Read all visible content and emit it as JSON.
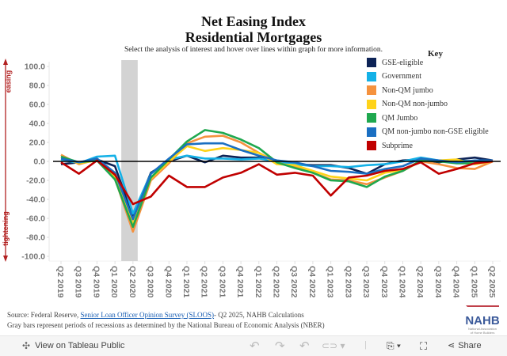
{
  "header": {
    "title_line1": "Net Easing Index",
    "title_line2": "Residential Mortgages",
    "subtitle": "Select the analysis of interest and hover over lines within graph for more information."
  },
  "legend": {
    "title": "Key"
  },
  "axis_annotations": {
    "top": "easing",
    "bottom": "tightening",
    "arrow_color": "#b22222"
  },
  "chart_data": {
    "type": "line",
    "title": "Net Easing Index Residential Mortgages",
    "xlabel": "",
    "ylabel": "",
    "ylim": [
      -100,
      100
    ],
    "yticks": [
      100,
      80,
      60,
      40,
      20,
      0,
      -20,
      -40,
      -60,
      -80,
      -100
    ],
    "ytick_labels": [
      "100.0",
      "80.0",
      "60.0",
      "40.0",
      "20.0",
      "0.0",
      "-20.0",
      "-40.0",
      "-60.0",
      "-80.0",
      "-100.0"
    ],
    "x": [
      "Q2 2019",
      "Q3 2019",
      "Q4 2019",
      "Q1 2020",
      "Q2 2020",
      "Q3 2020",
      "Q4 2020",
      "Q1 2021",
      "Q2 2021",
      "Q3 2021",
      "Q4 2021",
      "Q1 2022",
      "Q2 2022",
      "Q3 2022",
      "Q4 2022",
      "Q1 2023",
      "Q2 2023",
      "Q3 2023",
      "Q4 2023",
      "Q1 2024",
      "Q2 2024",
      "Q3 2024",
      "Q4 2024",
      "Q1 2025",
      "Q2 2025"
    ],
    "recession_shading": {
      "from": "Q1 2020",
      "to": "Q2 2020",
      "color": "#d3d3d3"
    },
    "zero_line": true,
    "legend_position": "top-right",
    "series": [
      {
        "name": "GSE-eligible",
        "color": "#0d2356",
        "values": [
          -3,
          -1,
          2,
          -5,
          -58,
          -12,
          0,
          6,
          -1,
          6,
          4,
          4,
          -1,
          -3,
          -4,
          -4,
          -7,
          -13,
          -3,
          1,
          2,
          -1,
          2,
          4,
          1
        ]
      },
      {
        "name": "Government",
        "color": "#14b1e7",
        "values": [
          2,
          -2,
          5,
          6,
          -55,
          -13,
          2,
          6,
          3,
          3,
          2,
          3,
          0,
          -3,
          -5,
          -5,
          -6,
          -4,
          -3,
          0,
          4,
          1,
          1,
          0,
          1
        ]
      },
      {
        "name": "Non-QM jumbo",
        "color": "#f5923e",
        "values": [
          7,
          -3,
          2,
          -18,
          -74,
          -20,
          -2,
          19,
          26,
          27,
          20,
          9,
          -1,
          -6,
          -12,
          -19,
          -20,
          -24,
          -17,
          -10,
          0,
          -3,
          -7,
          -8,
          0
        ]
      },
      {
        "name": "Non-QM non-jumbo",
        "color": "#ffd31a",
        "values": [
          5,
          -2,
          1,
          -16,
          -66,
          -18,
          0,
          16,
          11,
          14,
          12,
          9,
          -3,
          -4,
          -10,
          -16,
          -18,
          -20,
          -12,
          -9,
          0,
          1,
          2,
          -3,
          0
        ]
      },
      {
        "name": "QM Jumbo",
        "color": "#1fa84f",
        "values": [
          5,
          -1,
          1,
          -19,
          -69,
          -17,
          2,
          21,
          33,
          30,
          23,
          14,
          -1,
          -7,
          -12,
          -20,
          -21,
          -27,
          -16,
          -10,
          1,
          0,
          -2,
          -2,
          1
        ]
      },
      {
        "name": "QM non-jumbo non-GSE eligible",
        "color": "#1a6fc2",
        "values": [
          3,
          -1,
          3,
          -12,
          -61,
          -13,
          3,
          18,
          19,
          19,
          12,
          6,
          1,
          -1,
          -5,
          -10,
          -11,
          -13,
          -8,
          -5,
          3,
          1,
          -1,
          1,
          1
        ]
      },
      {
        "name": "Subprime",
        "color": "#c00000",
        "values": [
          -1,
          -13,
          1,
          -14,
          -45,
          -37,
          -15,
          -27,
          -27,
          -17,
          -12,
          -3,
          -14,
          -12,
          -15,
          -36,
          -17,
          -15,
          -10,
          -8,
          -1,
          -13,
          -8,
          -2,
          0
        ]
      }
    ]
  },
  "footer": {
    "source_prefix": "Source: Federal Reserve, ",
    "source_link": "Senior Loan Officer Opinion Survey (SLOOS)",
    "source_suffix": "- Q2 2025, NAHB Calculations",
    "note": "Gray bars represent periods of recessions as determined by the National Bureau of Economic Analysis (NBER)"
  },
  "logo": {
    "text": "NAHB",
    "subtext_line1": "National Association",
    "subtext_line2": "of Home Builders"
  },
  "toolbar": {
    "view_label": "View on Tableau Public",
    "share_label": "Share"
  }
}
